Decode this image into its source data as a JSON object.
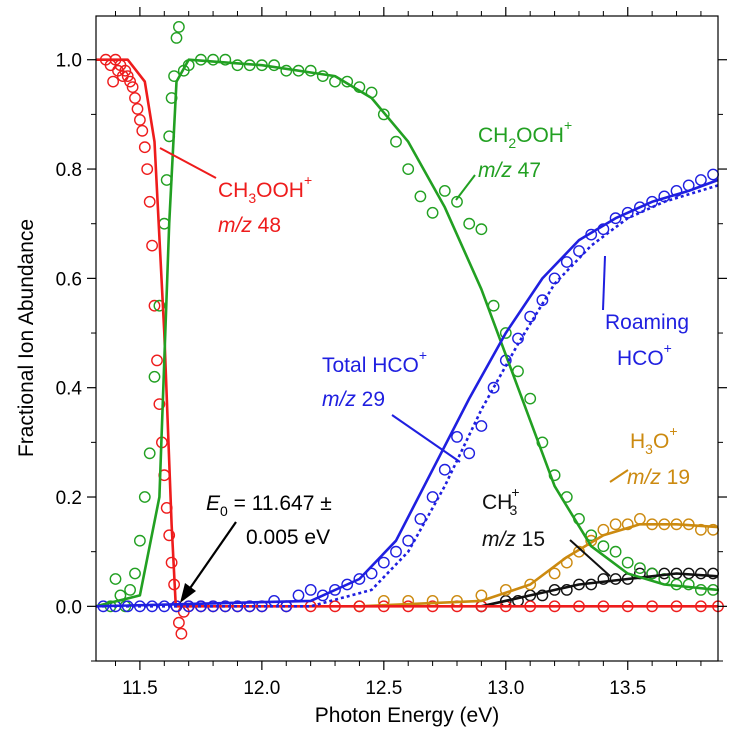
{
  "chart_data": {
    "type": "scatter",
    "title": "",
    "xlabel": "Photon Energy (eV)",
    "ylabel": "Fractional Ion Abundance",
    "xlim": [
      11.32,
      13.87
    ],
    "ylim": [
      -0.1,
      1.08
    ],
    "x_ticks": [
      "11.5",
      "12.0",
      "12.5",
      "13.0",
      "13.5"
    ],
    "y_ticks": [
      "0.0",
      "0.2",
      "0.4",
      "0.6",
      "0.8",
      "1.0"
    ],
    "legend": "none (inline labels)",
    "grid": false,
    "series": [
      {
        "name": "CH3OOH+",
        "label": {
          "main": "CH",
          "sub1": "3",
          "mid": "OOH",
          "sup": "+",
          "mz_italic": "m/z",
          "mz_value": " 48"
        },
        "color": "#ee1c1c",
        "points": [
          [
            11.36,
            1.0
          ],
          [
            11.38,
            0.99
          ],
          [
            11.39,
            0.96
          ],
          [
            11.4,
            1.0
          ],
          [
            11.41,
            0.98
          ],
          [
            11.42,
            0.99
          ],
          [
            11.43,
            0.97
          ],
          [
            11.44,
            0.98
          ],
          [
            11.45,
            0.97
          ],
          [
            11.46,
            0.96
          ],
          [
            11.47,
            0.95
          ],
          [
            11.48,
            0.93
          ],
          [
            11.49,
            0.91
          ],
          [
            11.5,
            0.89
          ],
          [
            11.51,
            0.87
          ],
          [
            11.52,
            0.84
          ],
          [
            11.53,
            0.8
          ],
          [
            11.54,
            0.74
          ],
          [
            11.55,
            0.66
          ],
          [
            11.56,
            0.55
          ],
          [
            11.57,
            0.45
          ],
          [
            11.58,
            0.37
          ],
          [
            11.59,
            0.3
          ],
          [
            11.6,
            0.24
          ],
          [
            11.61,
            0.18
          ],
          [
            11.62,
            0.13
          ],
          [
            11.63,
            0.08
          ],
          [
            11.64,
            0.04
          ],
          [
            11.65,
            0.0
          ],
          [
            11.66,
            -0.03
          ],
          [
            11.67,
            -0.05
          ],
          [
            11.68,
            -0.01
          ],
          [
            11.7,
            0.0
          ],
          [
            11.75,
            0.0
          ],
          [
            11.8,
            0.0
          ],
          [
            11.85,
            0.0
          ],
          [
            11.9,
            0.0
          ],
          [
            11.95,
            0.0
          ],
          [
            12.0,
            0.0
          ],
          [
            12.1,
            0.0
          ],
          [
            12.2,
            0.0
          ],
          [
            12.3,
            0.0
          ],
          [
            12.4,
            0.0
          ],
          [
            12.5,
            0.0
          ],
          [
            12.6,
            0.0
          ],
          [
            12.7,
            0.0
          ],
          [
            12.8,
            0.0
          ],
          [
            12.9,
            0.0
          ],
          [
            13.0,
            0.0
          ],
          [
            13.1,
            0.0
          ],
          [
            13.2,
            0.0
          ],
          [
            13.3,
            0.0
          ],
          [
            13.4,
            0.0
          ],
          [
            13.5,
            0.0
          ],
          [
            13.6,
            0.0
          ],
          [
            13.7,
            0.0
          ],
          [
            13.8,
            0.0
          ],
          [
            13.87,
            0.0
          ]
        ],
        "fit": [
          [
            11.32,
            1.0
          ],
          [
            11.45,
            1.0
          ],
          [
            11.52,
            0.96
          ],
          [
            11.56,
            0.85
          ],
          [
            11.6,
            0.5
          ],
          [
            11.63,
            0.15
          ],
          [
            11.647,
            0.0
          ],
          [
            13.87,
            0.0
          ]
        ]
      },
      {
        "name": "CH2OOH+",
        "label": {
          "main": "CH",
          "sub1": "2",
          "mid": "OOH",
          "sup": "+",
          "mz_italic": "m/z",
          "mz_value": " 47"
        },
        "color": "#22a022",
        "points": [
          [
            11.38,
            0.0
          ],
          [
            11.4,
            0.05
          ],
          [
            11.42,
            0.02
          ],
          [
            11.44,
            0.0
          ],
          [
            11.46,
            0.03
          ],
          [
            11.48,
            0.06
          ],
          [
            11.5,
            0.12
          ],
          [
            11.52,
            0.2
          ],
          [
            11.54,
            0.28
          ],
          [
            11.56,
            0.42
          ],
          [
            11.58,
            0.55
          ],
          [
            11.6,
            0.7
          ],
          [
            11.61,
            0.78
          ],
          [
            11.62,
            0.86
          ],
          [
            11.63,
            0.93
          ],
          [
            11.64,
            0.97
          ],
          [
            11.65,
            1.04
          ],
          [
            11.66,
            1.06
          ],
          [
            11.68,
            0.98
          ],
          [
            11.7,
            0.99
          ],
          [
            11.75,
            1.0
          ],
          [
            11.8,
            1.0
          ],
          [
            11.85,
            1.0
          ],
          [
            11.9,
            0.99
          ],
          [
            11.95,
            0.99
          ],
          [
            12.0,
            0.99
          ],
          [
            12.05,
            0.99
          ],
          [
            12.1,
            0.98
          ],
          [
            12.15,
            0.98
          ],
          [
            12.2,
            0.98
          ],
          [
            12.25,
            0.97
          ],
          [
            12.3,
            0.96
          ],
          [
            12.35,
            0.96
          ],
          [
            12.4,
            0.95
          ],
          [
            12.45,
            0.94
          ],
          [
            12.5,
            0.9
          ],
          [
            12.55,
            0.85
          ],
          [
            12.6,
            0.8
          ],
          [
            12.65,
            0.75
          ],
          [
            12.7,
            0.72
          ],
          [
            12.75,
            0.76
          ],
          [
            12.8,
            0.74
          ],
          [
            12.85,
            0.7
          ],
          [
            12.9,
            0.69
          ],
          [
            12.95,
            0.55
          ],
          [
            13.0,
            0.5
          ],
          [
            13.05,
            0.43
          ],
          [
            13.1,
            0.38
          ],
          [
            13.15,
            0.3
          ],
          [
            13.2,
            0.24
          ],
          [
            13.25,
            0.2
          ],
          [
            13.3,
            0.16
          ],
          [
            13.35,
            0.13
          ],
          [
            13.4,
            0.11
          ],
          [
            13.45,
            0.1
          ],
          [
            13.5,
            0.08
          ],
          [
            13.55,
            0.07
          ],
          [
            13.6,
            0.06
          ],
          [
            13.65,
            0.05
          ],
          [
            13.7,
            0.04
          ],
          [
            13.75,
            0.04
          ],
          [
            13.8,
            0.03
          ],
          [
            13.85,
            0.03
          ]
        ],
        "fit": [
          [
            11.32,
            0.0
          ],
          [
            11.5,
            0.02
          ],
          [
            11.58,
            0.2
          ],
          [
            11.62,
            0.7
          ],
          [
            11.65,
            0.96
          ],
          [
            11.7,
            1.0
          ],
          [
            12.0,
            0.99
          ],
          [
            12.3,
            0.97
          ],
          [
            12.45,
            0.93
          ],
          [
            12.6,
            0.85
          ],
          [
            12.75,
            0.73
          ],
          [
            12.9,
            0.58
          ],
          [
            13.05,
            0.4
          ],
          [
            13.2,
            0.22
          ],
          [
            13.35,
            0.11
          ],
          [
            13.5,
            0.06
          ],
          [
            13.65,
            0.04
          ],
          [
            13.87,
            0.03
          ]
        ]
      },
      {
        "name": "Total HCO+",
        "label": {
          "main": "Total HCO",
          "sup": "+",
          "mz_italic": "m/z",
          "mz_value": " 29"
        },
        "color": "#1f1fe0",
        "points": [
          [
            11.35,
            0.0
          ],
          [
            11.4,
            0.0
          ],
          [
            11.45,
            0.0
          ],
          [
            11.5,
            0.0
          ],
          [
            11.55,
            0.0
          ],
          [
            11.6,
            0.0
          ],
          [
            11.65,
            0.0
          ],
          [
            11.7,
            0.0
          ],
          [
            11.75,
            0.0
          ],
          [
            11.8,
            0.0
          ],
          [
            11.85,
            0.0
          ],
          [
            11.9,
            0.0
          ],
          [
            11.95,
            0.0
          ],
          [
            12.0,
            0.0
          ],
          [
            12.05,
            0.01
          ],
          [
            12.1,
            0.0
          ],
          [
            12.15,
            0.02
          ],
          [
            12.2,
            0.03
          ],
          [
            12.25,
            0.02
          ],
          [
            12.3,
            0.03
          ],
          [
            12.35,
            0.04
          ],
          [
            12.4,
            0.05
          ],
          [
            12.45,
            0.06
          ],
          [
            12.5,
            0.08
          ],
          [
            12.55,
            0.1
          ],
          [
            12.6,
            0.12
          ],
          [
            12.65,
            0.16
          ],
          [
            12.7,
            0.2
          ],
          [
            12.75,
            0.25
          ],
          [
            12.8,
            0.31
          ],
          [
            12.85,
            0.28
          ],
          [
            12.9,
            0.33
          ],
          [
            12.95,
            0.4
          ],
          [
            13.0,
            0.45
          ],
          [
            13.05,
            0.49
          ],
          [
            13.1,
            0.53
          ],
          [
            13.15,
            0.56
          ],
          [
            13.2,
            0.6
          ],
          [
            13.25,
            0.63
          ],
          [
            13.3,
            0.65
          ],
          [
            13.35,
            0.68
          ],
          [
            13.4,
            0.69
          ],
          [
            13.45,
            0.71
          ],
          [
            13.5,
            0.72
          ],
          [
            13.55,
            0.73
          ],
          [
            13.6,
            0.74
          ],
          [
            13.65,
            0.75
          ],
          [
            13.7,
            0.76
          ],
          [
            13.75,
            0.77
          ],
          [
            13.8,
            0.78
          ],
          [
            13.85,
            0.79
          ]
        ],
        "fit": [
          [
            11.32,
            0.0
          ],
          [
            12.2,
            0.01
          ],
          [
            12.4,
            0.05
          ],
          [
            12.55,
            0.12
          ],
          [
            12.7,
            0.25
          ],
          [
            12.85,
            0.38
          ],
          [
            13.0,
            0.5
          ],
          [
            13.15,
            0.6
          ],
          [
            13.3,
            0.67
          ],
          [
            13.45,
            0.71
          ],
          [
            13.6,
            0.74
          ],
          [
            13.75,
            0.76
          ],
          [
            13.87,
            0.78
          ]
        ],
        "fit_dotted": [
          [
            11.32,
            0.0
          ],
          [
            12.2,
            0.0
          ],
          [
            12.45,
            0.03
          ],
          [
            12.6,
            0.1
          ],
          [
            12.75,
            0.22
          ],
          [
            12.9,
            0.36
          ],
          [
            13.05,
            0.48
          ],
          [
            13.2,
            0.59
          ],
          [
            13.35,
            0.66
          ],
          [
            13.5,
            0.71
          ],
          [
            13.65,
            0.74
          ],
          [
            13.87,
            0.77
          ]
        ]
      },
      {
        "name": "Roaming HCO+",
        "label": {
          "line1": "Roaming",
          "main": "HCO",
          "sup": "+"
        },
        "color": "#1f1fe0"
      },
      {
        "name": "H3O+",
        "label": {
          "main": "H",
          "sub1": "3",
          "mid": "O",
          "sup": "+",
          "mz_italic": "m/z",
          "mz_value": " 19"
        },
        "color": "#cc8a10",
        "points": [
          [
            12.4,
            0.0
          ],
          [
            12.5,
            0.01
          ],
          [
            12.6,
            0.01
          ],
          [
            12.7,
            0.01
          ],
          [
            12.8,
            0.01
          ],
          [
            12.9,
            0.02
          ],
          [
            13.0,
            0.03
          ],
          [
            13.1,
            0.04
          ],
          [
            13.2,
            0.06
          ],
          [
            13.25,
            0.08
          ],
          [
            13.3,
            0.1
          ],
          [
            13.35,
            0.12
          ],
          [
            13.4,
            0.14
          ],
          [
            13.45,
            0.15
          ],
          [
            13.5,
            0.15
          ],
          [
            13.55,
            0.16
          ],
          [
            13.6,
            0.15
          ],
          [
            13.65,
            0.15
          ],
          [
            13.7,
            0.15
          ],
          [
            13.75,
            0.15
          ],
          [
            13.8,
            0.14
          ],
          [
            13.85,
            0.14
          ]
        ],
        "fit": [
          [
            12.4,
            0.0
          ],
          [
            12.9,
            0.01
          ],
          [
            13.1,
            0.04
          ],
          [
            13.25,
            0.09
          ],
          [
            13.4,
            0.13
          ],
          [
            13.55,
            0.15
          ],
          [
            13.7,
            0.15
          ],
          [
            13.87,
            0.145
          ]
        ]
      },
      {
        "name": "CH3+",
        "label": {
          "main": "CH",
          "sup": "+",
          "sub1": "3",
          "mz_italic": "m/z",
          "mz_value": " 15"
        },
        "color": "#111111",
        "points": [
          [
            12.9,
            0.0
          ],
          [
            13.0,
            0.01
          ],
          [
            13.05,
            0.01
          ],
          [
            13.1,
            0.02
          ],
          [
            13.15,
            0.02
          ],
          [
            13.2,
            0.03
          ],
          [
            13.25,
            0.03
          ],
          [
            13.3,
            0.04
          ],
          [
            13.35,
            0.04
          ],
          [
            13.4,
            0.05
          ],
          [
            13.45,
            0.05
          ],
          [
            13.5,
            0.05
          ],
          [
            13.55,
            0.06
          ],
          [
            13.6,
            0.06
          ],
          [
            13.65,
            0.06
          ],
          [
            13.7,
            0.06
          ],
          [
            13.75,
            0.06
          ],
          [
            13.8,
            0.06
          ],
          [
            13.85,
            0.06
          ]
        ],
        "fit": [
          [
            12.9,
            0.0
          ],
          [
            13.1,
            0.02
          ],
          [
            13.3,
            0.04
          ],
          [
            13.5,
            0.05
          ],
          [
            13.7,
            0.06
          ],
          [
            13.87,
            0.055
          ]
        ]
      }
    ],
    "annotation": {
      "italic": "E",
      "sub": "0",
      "line1_rest": " = 11.647 ±",
      "line2": "0.005 eV",
      "arrow_to": [
        11.647,
        0.0
      ]
    }
  }
}
